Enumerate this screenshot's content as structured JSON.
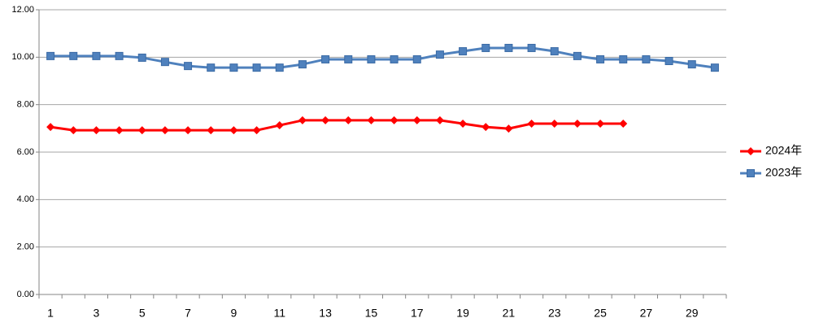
{
  "chart_data": {
    "type": "line",
    "categories": [
      1,
      null,
      3,
      null,
      5,
      null,
      7,
      null,
      9,
      null,
      11,
      null,
      13,
      null,
      15,
      null,
      17,
      null,
      19,
      null,
      21,
      null,
      23,
      null,
      25,
      null,
      27,
      null,
      29,
      null
    ],
    "series": [
      {
        "name": "2024年",
        "color": "#ff0000",
        "marker": "diamond",
        "values": [
          7.06,
          6.92,
          6.92,
          6.92,
          6.92,
          6.92,
          6.92,
          6.92,
          6.92,
          6.92,
          7.13,
          7.34,
          7.34,
          7.34,
          7.34,
          7.34,
          7.34,
          7.34,
          7.2,
          7.06,
          6.99,
          7.2,
          7.2,
          7.2,
          7.2,
          7.2,
          null,
          null,
          null,
          null
        ]
      },
      {
        "name": "2023年",
        "color": "#4f81bd",
        "marker": "square",
        "values": [
          10.05,
          10.05,
          10.05,
          10.05,
          9.98,
          9.8,
          9.63,
          9.56,
          9.56,
          9.56,
          9.56,
          9.7,
          9.91,
          9.91,
          9.91,
          9.91,
          9.91,
          10.11,
          10.25,
          10.39,
          10.39,
          10.39,
          10.25,
          10.05,
          9.91,
          9.91,
          9.91,
          9.84,
          9.7,
          9.56
        ]
      }
    ],
    "ylim": [
      0,
      12
    ],
    "yticks": [
      {
        "value": 0,
        "label": "0.00"
      },
      {
        "value": 2,
        "label": "2.00"
      },
      {
        "value": 4,
        "label": "4.00"
      },
      {
        "value": 6,
        "label": "6.00"
      },
      {
        "value": 8,
        "label": "8.00"
      },
      {
        "value": 10,
        "label": "10.00"
      },
      {
        "value": 12,
        "label": "12.00"
      }
    ],
    "grid": true,
    "legend": "right"
  }
}
